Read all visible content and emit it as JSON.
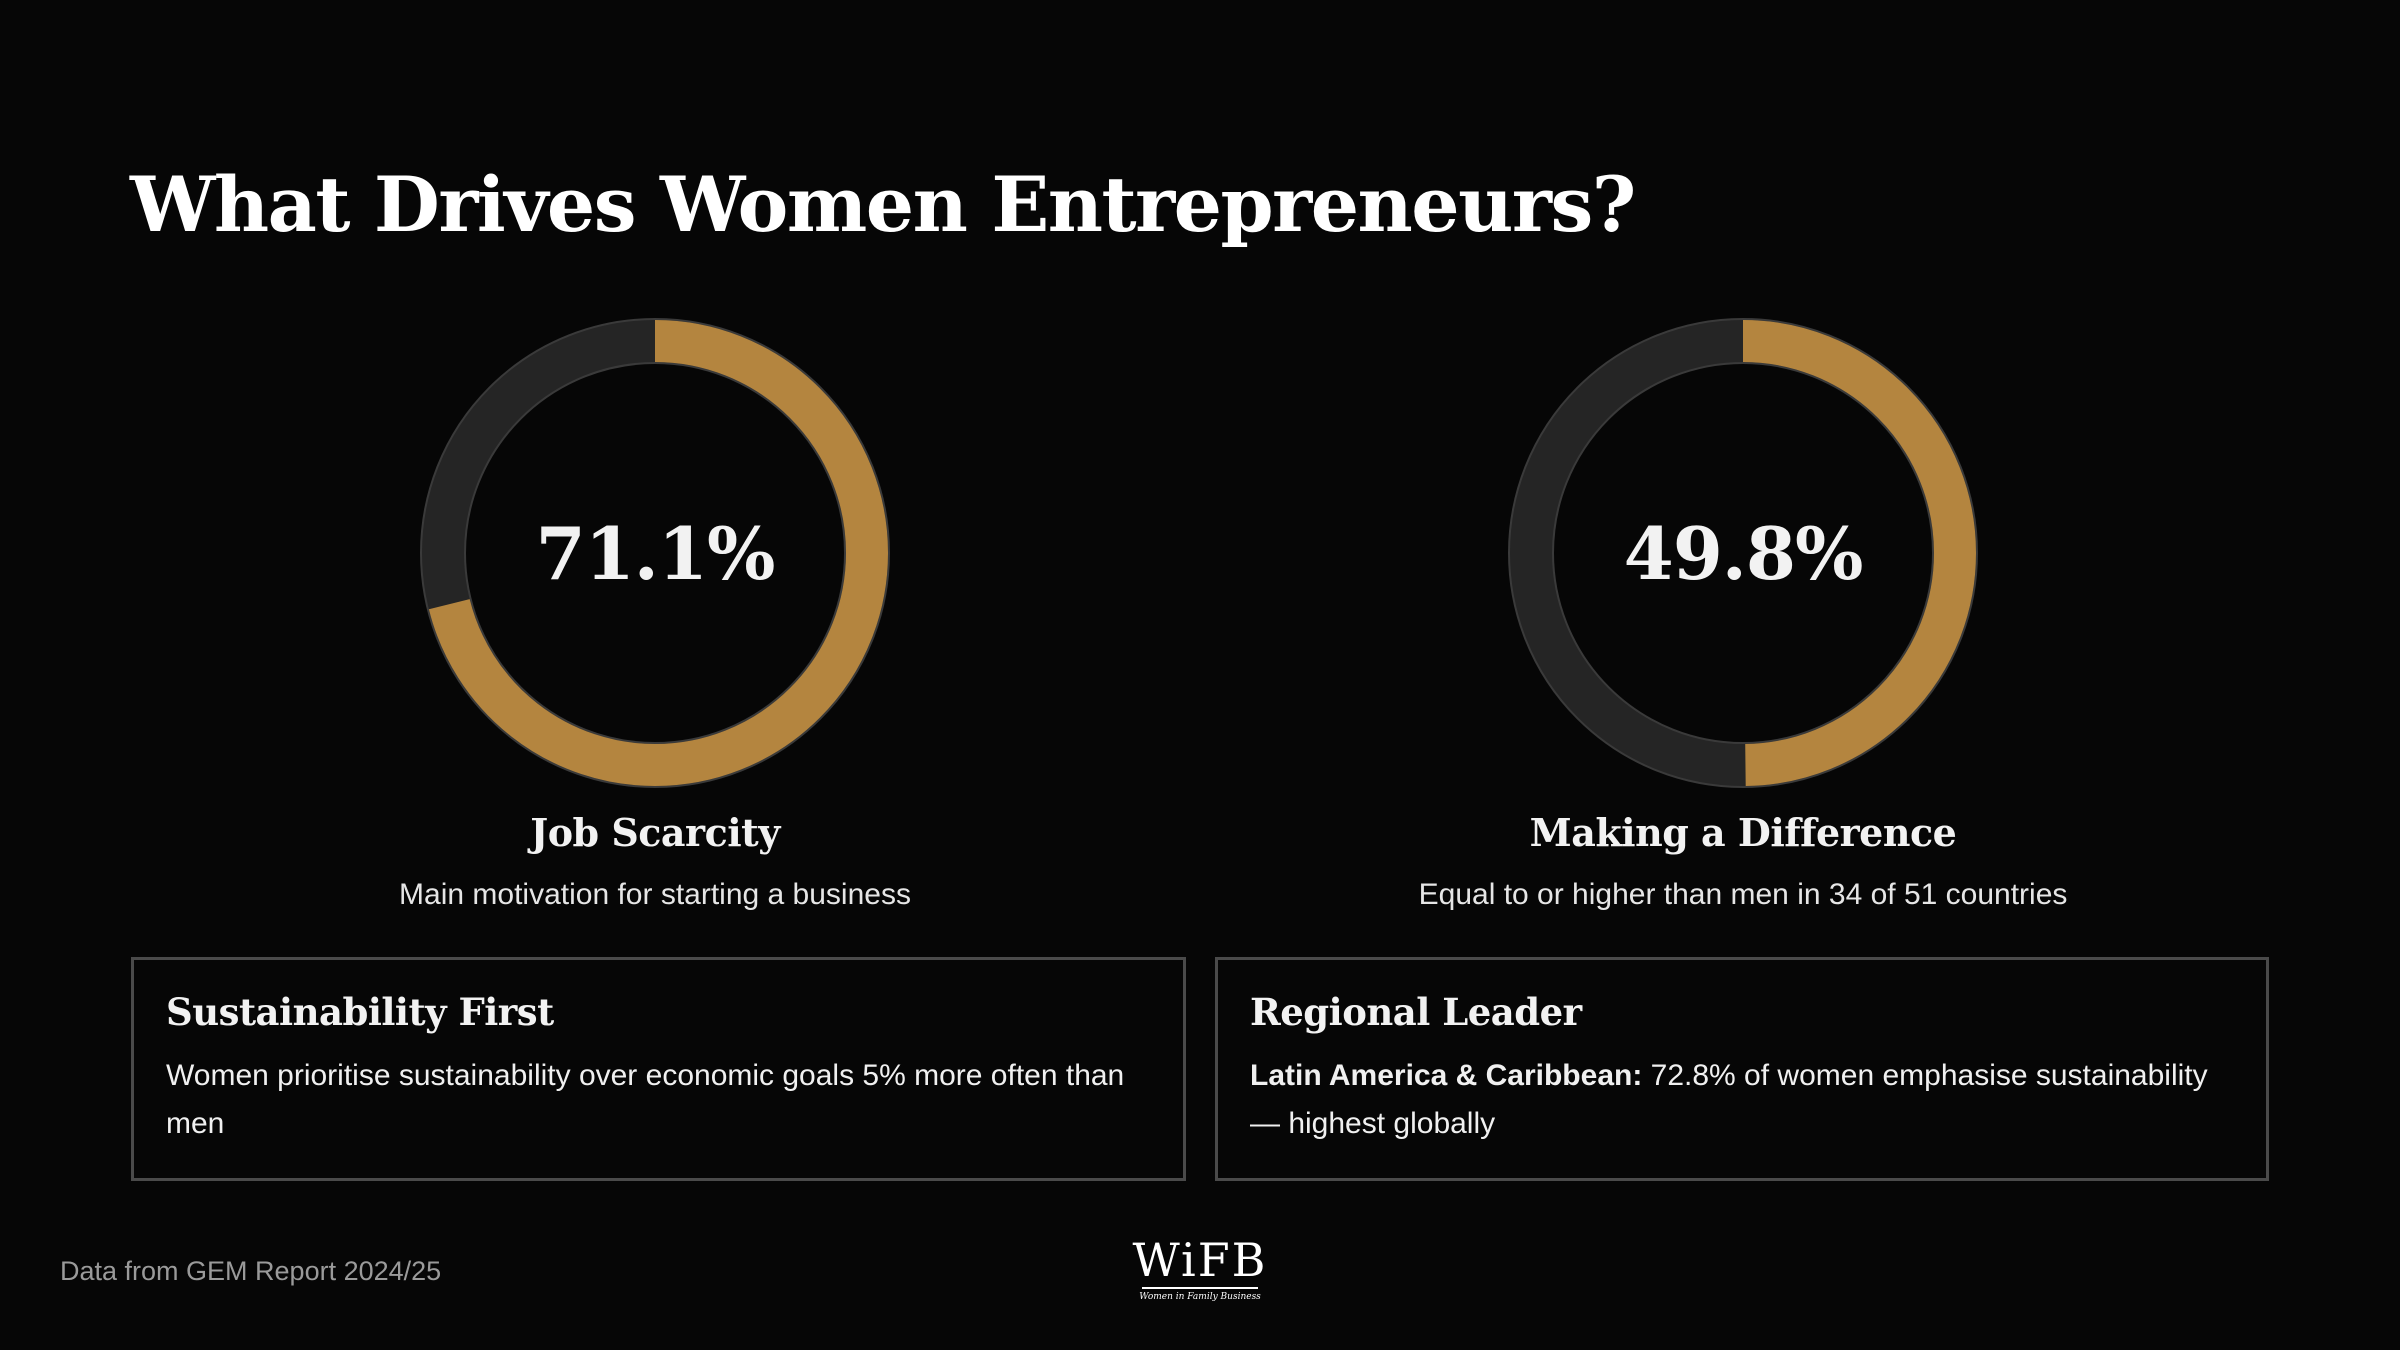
{
  "title": "What Drives Women Entrepreneurs?",
  "colors": {
    "accent": "#b4853f",
    "track": "#252525",
    "background": "#060606",
    "card_border": "#4a4a4a"
  },
  "chart_data": [
    {
      "type": "pie",
      "value": 71.1,
      "value_label": "71.1%",
      "title": "Job Scarcity",
      "subtitle": "Main motivation for starting a business"
    },
    {
      "type": "pie",
      "value": 49.8,
      "value_label": "49.8%",
      "title": "Making a Difference",
      "subtitle": "Equal to or higher than men in 34 of 51 countries"
    }
  ],
  "cards": [
    {
      "title": "Sustainability First",
      "body_bold": "",
      "body": "Women prioritise sustainability over economic goals 5% more often than men"
    },
    {
      "title": "Regional Leader",
      "body_bold": "Latin America & Caribbean:",
      "body": " 72.8% of women emphasise sustainability — highest globally"
    }
  ],
  "footer": {
    "source": "Data from GEM Report 2024/25",
    "logo_text": "WiFB",
    "logo_tagline": "Women in Family Business"
  }
}
